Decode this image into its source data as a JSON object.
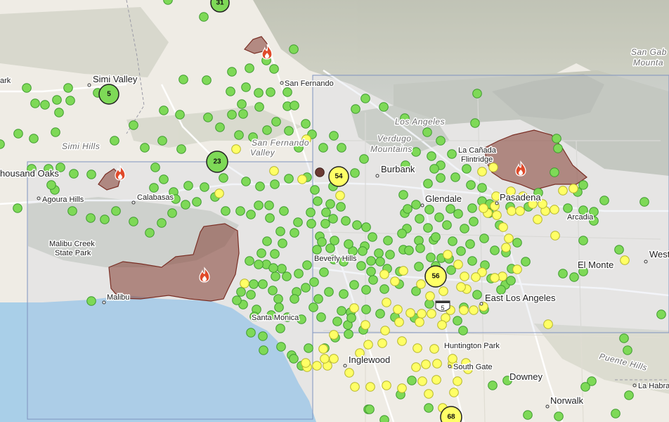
{
  "map": {
    "colors": {
      "good": "#7ed957",
      "good_stroke": "#3e9a2f",
      "moderate": "#ffff66",
      "moderate_stroke": "#b5b52a",
      "fire": "#8b4a3f",
      "ocean": "#a9cfe8",
      "land": "#efece5",
      "mountains": "#c4c7ba"
    },
    "clusters": [
      {
        "id": "c31",
        "label": "31",
        "level": "good"
      },
      {
        "id": "c5",
        "label": "5",
        "level": "good"
      },
      {
        "id": "c23",
        "label": "23",
        "level": "good"
      },
      {
        "id": "c54",
        "label": "54",
        "level": "moderate"
      },
      {
        "id": "c56",
        "label": "56",
        "level": "moderate"
      },
      {
        "id": "c68",
        "label": "68",
        "level": "moderate"
      }
    ],
    "places": {
      "park": "ark",
      "simi_valley": "Simi Valley",
      "san_fernando": "San Fernando",
      "san_gab": "San Gab",
      "mounta": "Mounta",
      "los_angeles": "Los Angeles",
      "san_fernando_valley_1": "San Fernando",
      "san_fernando_valley_2": "Valley",
      "verdugo_1": "Verdugo",
      "verdugo_2": "Mountains",
      "simi_hills": "Simi Hills",
      "thousand_oaks": "housand Oaks",
      "agoura_hills": "Agoura Hills",
      "calabasas": "Calabasas",
      "burbank": "Burbank",
      "la_canada_1": "La Cañada",
      "la_canada_2": "Flintridge",
      "pasadena": "Pasadena",
      "glendale": "Glendale",
      "arcadia": "Arcadia",
      "malibu_creek_1": "Malibu Creek",
      "malibu_creek_2": "State Park",
      "beverly_hills": "Beverly Hills",
      "west": "West",
      "el_monte": "El Monte",
      "malibu": "Malibu",
      "east_la": "East Los Angeles",
      "santa_monica": "Santa Monica",
      "huntington_park": "Huntington Park",
      "inglewood": "Inglewood",
      "south_gate": "South Gate",
      "puente_hills": "Puente Hills",
      "downey": "Downey",
      "la_habra": "La Habra",
      "norwalk": "Norwalk",
      "i5": "5"
    },
    "icons": {
      "fire_marker": "fire-icon",
      "interstate_shield": "interstate-shield-icon"
    }
  }
}
